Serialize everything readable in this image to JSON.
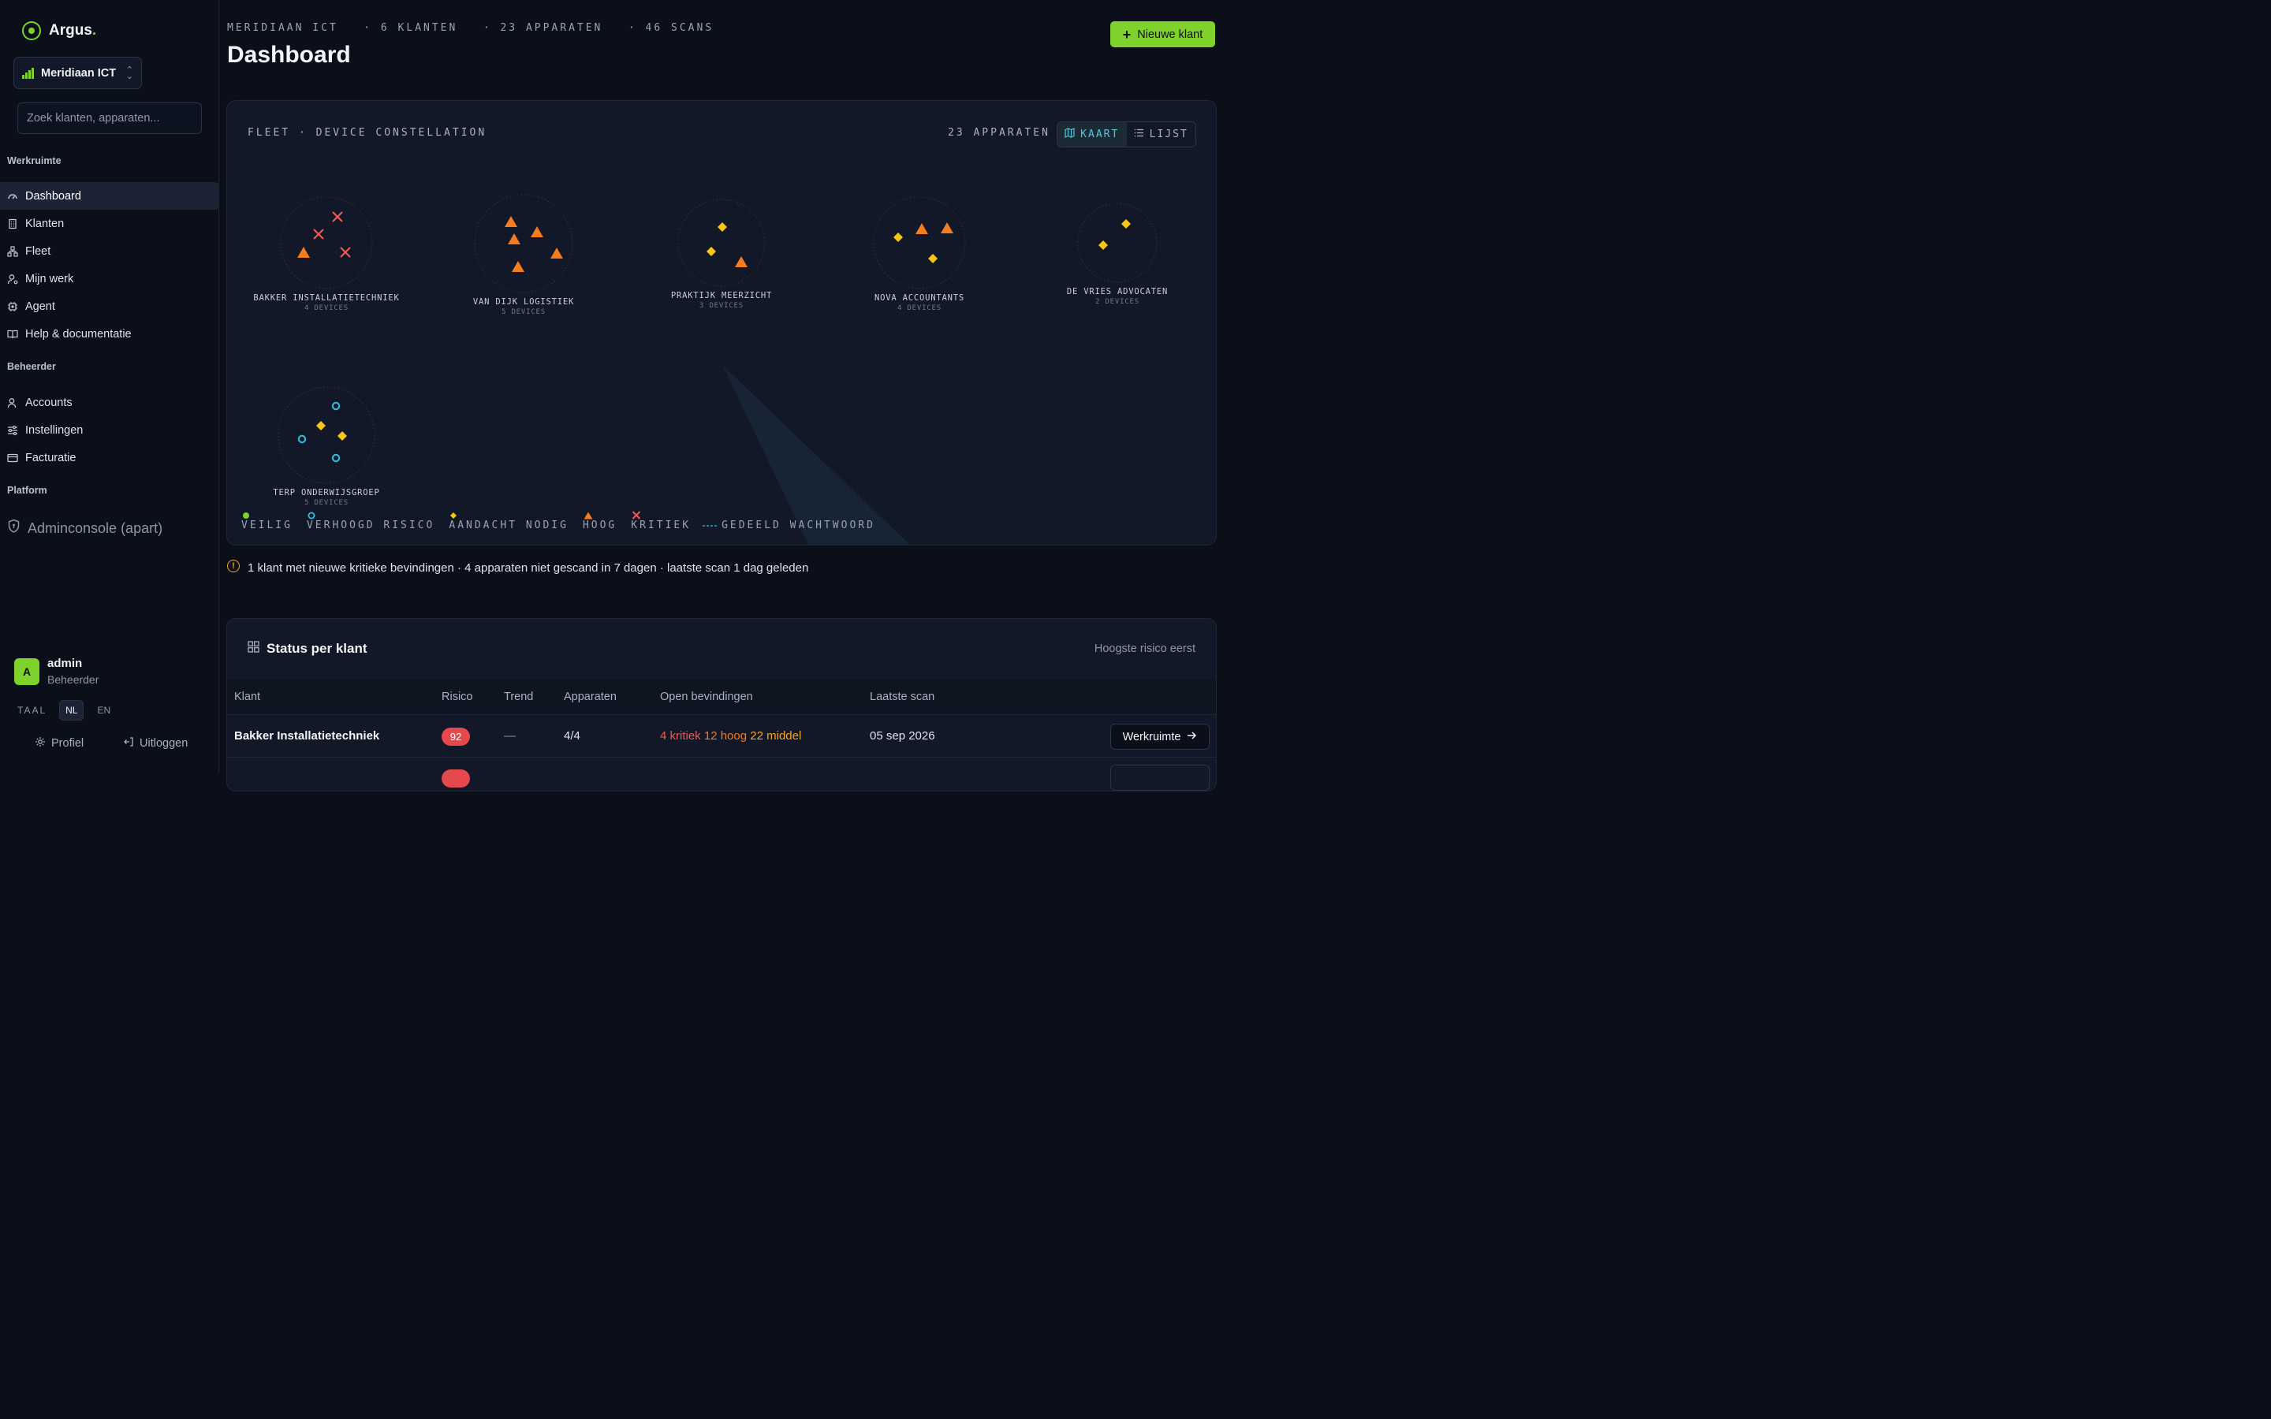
{
  "brand": {
    "name": "Argus",
    "dot": "."
  },
  "org": {
    "name": "Meridiaan ICT"
  },
  "search": {
    "placeholder": "Zoek klanten, apparaten..."
  },
  "sidebar": {
    "workspace_label": "Werkruimte",
    "workspace_items": [
      {
        "label": "Dashboard",
        "icon": "gauge-icon",
        "active": true
      },
      {
        "label": "Klanten",
        "icon": "building-icon"
      },
      {
        "label": "Fleet",
        "icon": "network-icon"
      },
      {
        "label": "Mijn werk",
        "icon": "user-gear-icon"
      },
      {
        "label": "Agent",
        "icon": "chip-icon"
      },
      {
        "label": "Help & documentatie",
        "icon": "book-icon"
      }
    ],
    "admin_label": "Beheerder",
    "admin_items": [
      {
        "label": "Accounts",
        "icon": "users-icon"
      },
      {
        "label": "Instellingen",
        "icon": "sliders-icon"
      },
      {
        "label": "Facturatie",
        "icon": "card-icon"
      }
    ],
    "platform_label": "Platform",
    "admin_console": "Adminconsole (apart)"
  },
  "user": {
    "initial": "A",
    "name": "admin",
    "role": "Beheerder"
  },
  "language": {
    "label": "TAAL",
    "options": [
      "NL",
      "EN"
    ],
    "selected": "NL"
  },
  "footer": {
    "profile": "Profiel",
    "logout": "Uitloggen"
  },
  "header": {
    "org": "MERIDIAAN ICT",
    "clients": "· 6 KLANTEN",
    "devices": "· 23 APPARATEN",
    "scans": "· 46 SCANS",
    "title": "Dashboard",
    "new_client_button": "Nieuwe klant"
  },
  "fleet": {
    "title": "FLEET · DEVICE CONSTELLATION",
    "count": "23 APPARATEN",
    "view_map": "KAART",
    "view_list": "LIJST",
    "colors": {
      "veilig": "#7fd12b",
      "verhoogd": "#2fc1e0",
      "aandacht": "#f5c518",
      "hoog": "#f57c1f",
      "kritiek": "#ef5b52"
    },
    "clusters": [
      {
        "name": "BAKKER INSTALLATIETECHNIEK",
        "devices_label": "4 DEVICES",
        "statuses": [
          "kritiek",
          "kritiek",
          "hoog",
          "kritiek"
        ]
      },
      {
        "name": "VAN DIJK LOGISTIEK",
        "devices_label": "5 DEVICES",
        "statuses": [
          "hoog",
          "hoog",
          "hoog",
          "hoog",
          "hoog"
        ]
      },
      {
        "name": "PRAKTIJK MEERZICHT",
        "devices_label": "3 DEVICES",
        "statuses": [
          "aandacht",
          "aandacht",
          "hoog"
        ]
      },
      {
        "name": "NOVA ACCOUNTANTS",
        "devices_label": "4 DEVICES",
        "statuses": [
          "aandacht",
          "hoog",
          "hoog",
          "aandacht"
        ]
      },
      {
        "name": "DE VRIES ADVOCATEN",
        "devices_label": "2 DEVICES",
        "statuses": [
          "aandacht",
          "aandacht"
        ]
      },
      {
        "name": "TERP ONDERWIJSGROEP",
        "devices_label": "5 DEVICES",
        "statuses": [
          "verhoogd",
          "aandacht",
          "aandacht",
          "verhoogd",
          "verhoogd"
        ]
      }
    ],
    "legend": {
      "veilig": "VEILIG",
      "verhoogd": "VERHOOGD RISICO",
      "aandacht": "AANDACHT NODIG",
      "hoog": "HOOG",
      "kritiek": "KRITIEK",
      "gedeeld": "GEDEELD WACHTWOORD"
    }
  },
  "alert": {
    "text": "1 klant met nieuwe kritieke bevindingen · 4 apparaten niet gescand in 7 dagen · laatste scan 1 dag geleden"
  },
  "status": {
    "title": "Status per klant",
    "sort": "Hoogste risico eerst",
    "columns": [
      "Klant",
      "Risico",
      "Trend",
      "Apparaten",
      "Open bevindingen",
      "Laatste scan"
    ],
    "rows": [
      {
        "client": "Bakker Installatietechniek",
        "risk": "92",
        "trend": "—",
        "devices": "4/4",
        "findings_critical": "4 kritiek",
        "findings_high": "12 hoog",
        "findings_mid": "22 middel",
        "last_scan": "05 sep 2026",
        "action": "Werkruimte"
      }
    ]
  }
}
